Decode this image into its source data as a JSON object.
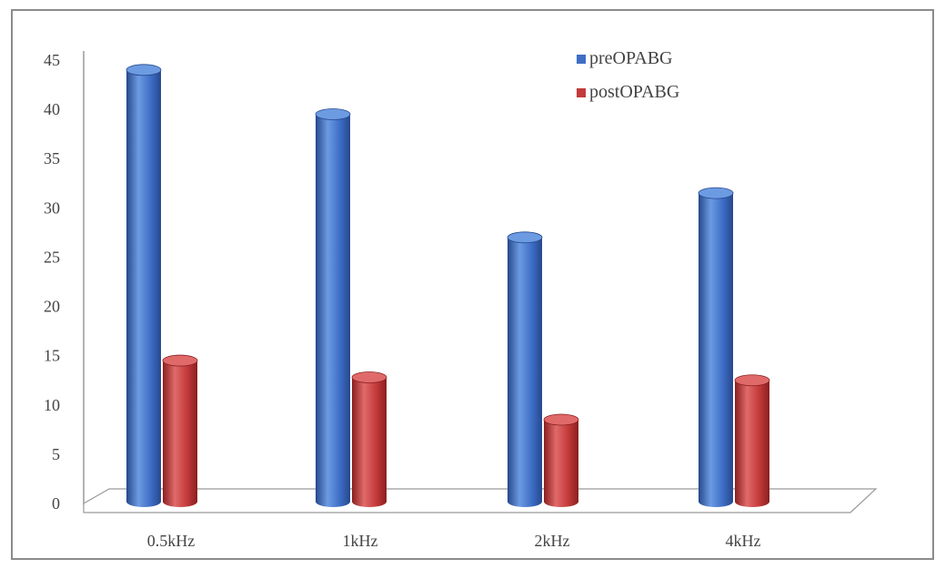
{
  "chart_data": {
    "type": "bar",
    "style": "3d-cylinder",
    "categories": [
      "0.5kHz",
      "1kHz",
      "2kHz",
      "4kHz"
    ],
    "series": [
      {
        "name": "preOPABG",
        "values": [
          44,
          39.5,
          27,
          31.5
        ],
        "color": "#3e6ec6",
        "color_dark": "#26488c",
        "color_light": "#6c9be2"
      },
      {
        "name": "postOPABG",
        "values": [
          14.5,
          12.8,
          8.5,
          12.5
        ],
        "color": "#c43a3a",
        "color_dark": "#8a1f1f",
        "color_light": "#e06a6a"
      }
    ],
    "yticks": [
      "0",
      "5",
      "10",
      "15",
      "20",
      "25",
      "30",
      "35",
      "40",
      "45"
    ],
    "ylim": [
      0,
      45
    ],
    "grid": false,
    "legend_position": "top-right",
    "title": "",
    "xlabel": "",
    "ylabel": ""
  }
}
